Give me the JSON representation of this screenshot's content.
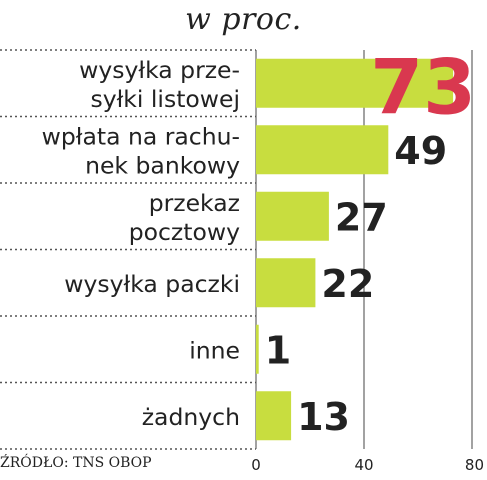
{
  "chart_data": {
    "type": "bar",
    "orientation": "horizontal",
    "subtitle": "w proc.",
    "categories": [
      [
        "wysyłka prze-",
        "syłki listowej"
      ],
      [
        "wpłata na rachu-",
        "nek bankowy"
      ],
      [
        "przekaz",
        "pocztowy"
      ],
      [
        "wysyłka paczki"
      ],
      [
        "inne"
      ],
      [
        "żadnych"
      ]
    ],
    "values": [
      73,
      49,
      27,
      22,
      1,
      13
    ],
    "xlim": [
      0,
      80
    ],
    "ticks": [
      0,
      40,
      80
    ],
    "grid": true,
    "source": "ŹRÓDŁO: TNS OBOP",
    "bar_color": "#c8dd3f",
    "label_color": "#222222",
    "highlight_color": "#d9384f"
  }
}
